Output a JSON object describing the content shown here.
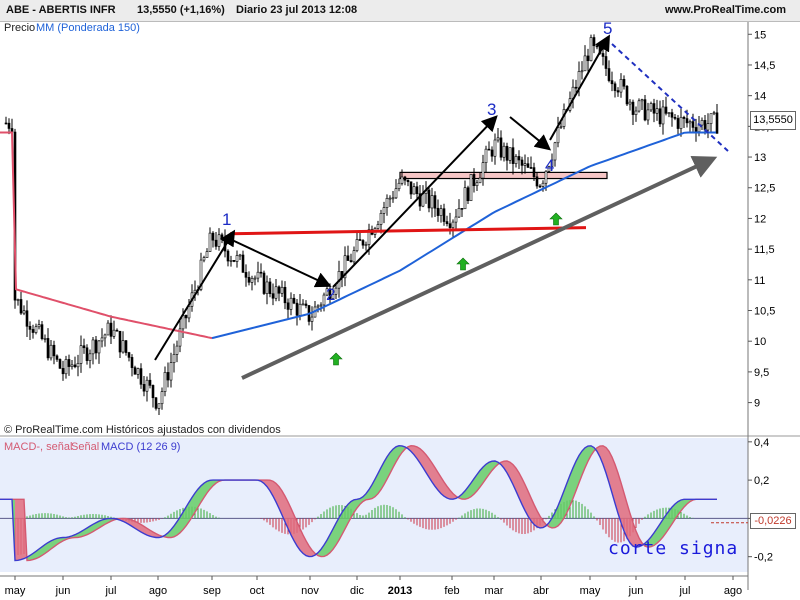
{
  "header": {
    "ticker": "ABE - ABERTIS INFR",
    "price_change": "13,5550 (+1,16%)",
    "period_date": "Diario  23 jul 2013 12:08",
    "site": "www.ProRealTime.com"
  },
  "legend": {
    "price_label": "Precio",
    "ma_label": "MM (Ponderada 150)",
    "credit": "© ProRealTime.com Históricos ajustados con dividendos",
    "macd_label_1": "MACD-, señal",
    "macd_label_2": "Señal",
    "macd_label_3": "MACD (12 26 9)"
  },
  "annotations": {
    "wave1": "1",
    "wave2": "2",
    "wave3": "3",
    "wave4": "4",
    "wave5": "5",
    "cross_note": "corte signa"
  },
  "last_value": "13,5550",
  "macd_last_value": "-0,0226",
  "colors": {
    "candle_up": "#ffffff",
    "candle_down": "#000000",
    "ma_before": "#e0506a",
    "ma_after": "#1f62d8",
    "support_red": "#e01515",
    "trend_gray": "#5f5f5f",
    "resistance_box": "#f6c6c6",
    "macd_fill_up": "#66cc66",
    "macd_fill_down": "#e06b7d",
    "macd_line": "#3c3ccf",
    "signal_line": "#d45a72",
    "macd_panel_bg": "#e8eefc",
    "arrow_green": "#22b022"
  },
  "chart_data": [
    {
      "type": "candlestick",
      "title": "ABE - ABERTIS INFR",
      "ylim": [
        8.7,
        15.2
      ],
      "y_ticks": [
        "15",
        "14,5",
        "14",
        "13,5",
        "13",
        "12,5",
        "12",
        "11,5",
        "11",
        "10,5",
        "10",
        "9,5",
        "9"
      ],
      "x_ticks": [
        "may",
        "jun",
        "jul",
        "ago",
        "sep",
        "oct",
        "nov",
        "dic",
        "2013",
        "feb",
        "mar",
        "abr",
        "may",
        "jun",
        "jul",
        "ago"
      ],
      "series": [
        {
          "name": "Precio",
          "approx_close_by_month": [
            {
              "x": "may",
              "y": 10.7
            },
            {
              "x": "jun",
              "y": 9.5
            },
            {
              "x": "jul",
              "y": 10.2
            },
            {
              "x": "ago",
              "y": 9.0
            },
            {
              "x": "sep",
              "y": 11.7
            },
            {
              "x": "oct",
              "y": 11.0
            },
            {
              "x": "nov",
              "y": 10.4
            },
            {
              "x": "dic",
              "y": 11.5
            },
            {
              "x": "2013",
              "y": 12.6
            },
            {
              "x": "feb",
              "y": 12.0
            },
            {
              "x": "mar",
              "y": 13.2
            },
            {
              "x": "abr",
              "y": 12.6
            },
            {
              "x": "may",
              "y": 14.8
            },
            {
              "x": "jun",
              "y": 13.8
            },
            {
              "x": "jul",
              "y": 13.555
            }
          ]
        },
        {
          "name": "MM (Ponderada 150)",
          "approx_values_by_month": [
            {
              "x": "may",
              "y": 10.85
            },
            {
              "x": "jul",
              "y": 10.4
            },
            {
              "x": "sep",
              "y": 10.05
            },
            {
              "x": "nov",
              "y": 10.45
            },
            {
              "x": "2013",
              "y": 11.15
            },
            {
              "x": "mar",
              "y": 12.1
            },
            {
              "x": "may",
              "y": 12.85
            },
            {
              "x": "jul",
              "y": 13.4
            }
          ]
        }
      ],
      "annotations": [
        {
          "label": "1",
          "x": "sep",
          "y": 11.75
        },
        {
          "label": "2",
          "x": "nov",
          "y": 10.4
        },
        {
          "label": "3",
          "x": "feb",
          "y": 13.7
        },
        {
          "label": "4",
          "x": "abr",
          "y": 12.7
        },
        {
          "label": "5",
          "x": "may",
          "y": 15.0
        }
      ],
      "lines": [
        {
          "kind": "support",
          "from": {
            "x": "sep",
            "y": 11.75
          },
          "to": {
            "x": "abr",
            "y": 11.85
          }
        },
        {
          "kind": "trendline",
          "from": {
            "x": "ago",
            "y": 9.4
          },
          "to": {
            "x": "jul",
            "y": 12.95
          }
        },
        {
          "kind": "resistance_zone",
          "y_range": [
            12.65,
            12.75
          ]
        }
      ]
    },
    {
      "type": "line",
      "title": "MACD (12 26 9)",
      "ylim": [
        -0.28,
        0.42
      ],
      "y_ticks": [
        "0,4",
        "0,2",
        "0",
        "-0,2"
      ],
      "series": [
        {
          "name": "MACD",
          "approx_values_by_month": [
            {
              "x": "may",
              "y": -0.22
            },
            {
              "x": "jun",
              "y": -0.1
            },
            {
              "x": "jul",
              "y": 0.0
            },
            {
              "x": "ago",
              "y": -0.1
            },
            {
              "x": "sep",
              "y": 0.2
            },
            {
              "x": "oct",
              "y": 0.2
            },
            {
              "x": "nov",
              "y": -0.2
            },
            {
              "x": "dic",
              "y": 0.1
            },
            {
              "x": "2013",
              "y": 0.38
            },
            {
              "x": "feb",
              "y": 0.1
            },
            {
              "x": "mar",
              "y": 0.3
            },
            {
              "x": "abr",
              "y": -0.05
            },
            {
              "x": "may",
              "y": 0.38
            },
            {
              "x": "jun",
              "y": -0.15
            },
            {
              "x": "jul",
              "y": 0.1
            }
          ]
        }
      ]
    }
  ]
}
